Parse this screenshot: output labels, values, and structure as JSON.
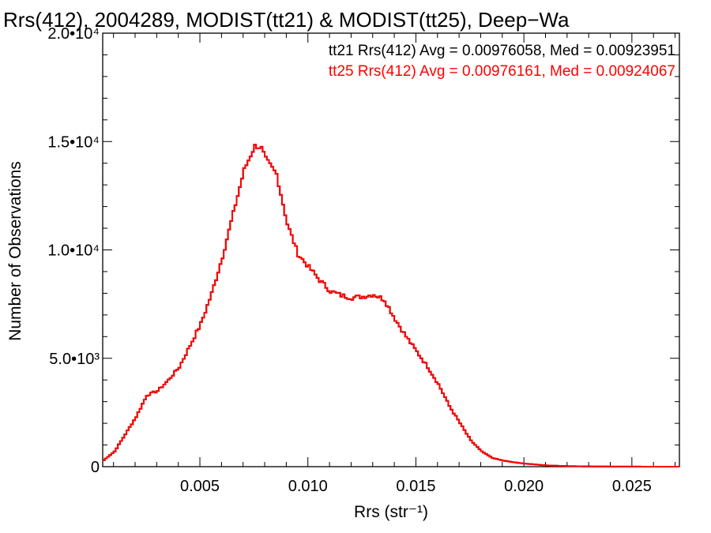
{
  "chart_data": {
    "type": "line",
    "title": "Rrs(412), 2004289, MODIST(tt21) & MODIST(tt25), Deep−Wa",
    "xlabel": "Rrs (str⁻¹)",
    "ylabel": "Number of Observations",
    "xlim": [
      0.0005,
      0.0272
    ],
    "ylim": [
      0,
      20000
    ],
    "x_ticks": [
      {
        "value": 0.005,
        "label": "0.005"
      },
      {
        "value": 0.01,
        "label": "0.010"
      },
      {
        "value": 0.015,
        "label": "0.015"
      },
      {
        "value": 0.02,
        "label": "0.020"
      },
      {
        "value": 0.025,
        "label": "0.025"
      }
    ],
    "y_ticks": [
      {
        "value": 0,
        "label": "0"
      },
      {
        "value": 5000,
        "label": "5.0•10³"
      },
      {
        "value": 10000,
        "label": "1.0•10⁴"
      },
      {
        "value": 15000,
        "label": "1.5•10⁴"
      },
      {
        "value": 20000,
        "label": "2.0•10⁴"
      }
    ],
    "legend": [
      {
        "text": "tt21 Rrs(412) Avg = 0.00976058, Med = 0.00923951",
        "color": "#000000"
      },
      {
        "text": "tt25 Rrs(412) Avg = 0.00976161, Med = 0.00924067",
        "color": "#ff0000"
      }
    ],
    "legend_placement": "top-right",
    "series": [
      {
        "color": "#000000",
        "x": [
          0.0005,
          0.001,
          0.0015,
          0.002,
          0.0025,
          0.003,
          0.0035,
          0.004,
          0.0045,
          0.005,
          0.0055,
          0.006,
          0.0065,
          0.007,
          0.0075,
          0.0078,
          0.008,
          0.0085,
          0.009,
          0.0095,
          0.01,
          0.0105,
          0.011,
          0.0115,
          0.012,
          0.0125,
          0.013,
          0.0135,
          0.014,
          0.0145,
          0.015,
          0.0155,
          0.016,
          0.0165,
          0.017,
          0.0175,
          0.018,
          0.0185,
          0.019,
          0.0195,
          0.02,
          0.0205,
          0.021,
          0.0215,
          0.022,
          0.023,
          0.024,
          0.025,
          0.026,
          0.0272
        ],
        "y": [
          300,
          700,
          1500,
          2300,
          3300,
          3500,
          4000,
          4600,
          5600,
          6600,
          8000,
          9700,
          11700,
          13700,
          14800,
          14700,
          14200,
          13500,
          11200,
          9800,
          9200,
          8600,
          8100,
          7900,
          7800,
          7850,
          7950,
          7700,
          6800,
          6000,
          5300,
          4600,
          3800,
          2800,
          2000,
          1200,
          700,
          400,
          280,
          200,
          140,
          100,
          60,
          40,
          25,
          12,
          6,
          3,
          1,
          0
        ]
      },
      {
        "color": "#ff0000",
        "x": [
          0.0005,
          0.001,
          0.0015,
          0.002,
          0.0025,
          0.003,
          0.0035,
          0.004,
          0.0045,
          0.005,
          0.0055,
          0.006,
          0.0065,
          0.007,
          0.0075,
          0.0078,
          0.008,
          0.0085,
          0.009,
          0.0095,
          0.01,
          0.0105,
          0.011,
          0.0115,
          0.012,
          0.0125,
          0.013,
          0.0135,
          0.014,
          0.0145,
          0.015,
          0.0155,
          0.016,
          0.0165,
          0.017,
          0.0175,
          0.018,
          0.0185,
          0.019,
          0.0195,
          0.02,
          0.0205,
          0.021,
          0.0215,
          0.022,
          0.023,
          0.024,
          0.025,
          0.026,
          0.0272
        ],
        "y": [
          300,
          700,
          1500,
          2300,
          3300,
          3500,
          4000,
          4600,
          5600,
          6600,
          8000,
          9700,
          11700,
          13700,
          14800,
          14700,
          14200,
          13500,
          11200,
          9800,
          9200,
          8600,
          8100,
          7900,
          7800,
          7850,
          7950,
          7700,
          6800,
          6000,
          5300,
          4600,
          3800,
          2800,
          2000,
          1200,
          700,
          400,
          280,
          200,
          140,
          100,
          60,
          40,
          25,
          12,
          6,
          3,
          1,
          0
        ]
      }
    ]
  }
}
